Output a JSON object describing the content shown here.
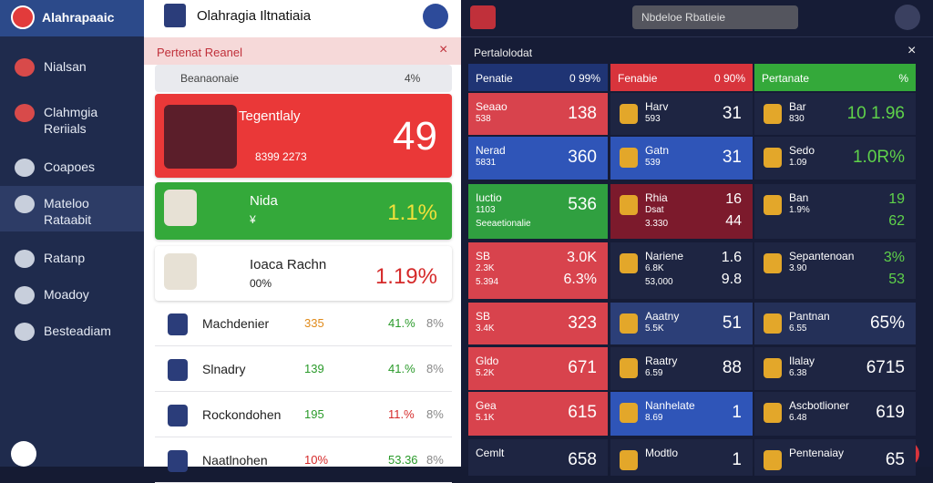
{
  "sidebar": {
    "brand": "Alahrapaaic",
    "items": [
      "Nialsan",
      "Clahmgia Reriials",
      "Coapoes",
      "Mateloo Rataabit",
      "Ratanp",
      "Moadoy",
      "Besteadiam"
    ]
  },
  "header": {
    "title": "Olahragia Iltnatiaia"
  },
  "panel": {
    "title": "Pertenat Reanel",
    "search": "Beanaonaie",
    "search_value": "4%",
    "cards": [
      {
        "title": "Tegentlaly",
        "sub": "8399 2273",
        "value": "49"
      },
      {
        "title": "Nida",
        "sub": "¥",
        "value": "1.1%"
      },
      {
        "title": "Ioaca Rachn",
        "sub": "00%",
        "value": "1.19%"
      }
    ],
    "rows": [
      [
        "Machdenier",
        "335",
        "41.%",
        "8%"
      ],
      [
        "Slnadry",
        "139",
        "41.%",
        "8%"
      ],
      [
        "Rockondohen",
        "195",
        "11.%",
        "8%"
      ],
      [
        "Naatlnohen",
        "10%",
        "53.36",
        "8%"
      ]
    ]
  },
  "right": {
    "search": "Nbdeloe Rbatieie",
    "title": "Pertalolodat",
    "columns": [
      {
        "header": "Penatie",
        "header_value": "0 99%",
        "cells": [
          {
            "lines": [
              "Seaao",
              "538"
            ],
            "values": [
              "138"
            ]
          },
          {
            "lines": [
              "Nerad",
              "5831"
            ],
            "values": [
              "360"
            ]
          },
          {
            "lines": [
              "Iuctio",
              "1103",
              "Seeaetionalie"
            ],
            "values": [
              "536"
            ]
          },
          {
            "lines": [
              "SB",
              "2.3K",
              "5.394"
            ],
            "values": [
              "3.0K",
              "6.3%"
            ]
          },
          {
            "lines": [
              "SB",
              "3.4K"
            ],
            "values": [
              "323"
            ]
          },
          {
            "lines": [
              "Gldo",
              "5.2K"
            ],
            "values": [
              "671"
            ]
          },
          {
            "lines": [
              "Gea",
              "5.1K"
            ],
            "values": [
              "615"
            ]
          },
          {
            "lines": [
              "Cemlt"
            ],
            "values": [
              "658"
            ]
          }
        ]
      },
      {
        "header": "Fenabie",
        "header_value": "0 90%",
        "cells": [
          {
            "lines": [
              "Harv",
              "593"
            ],
            "values": [
              "31"
            ]
          },
          {
            "lines": [
              "Gatn",
              "539"
            ],
            "values": [
              "31"
            ]
          },
          {
            "lines": [
              "Rhia",
              "Dsat",
              "3.330"
            ],
            "values": [
              "16",
              "44"
            ]
          },
          {
            "lines": [
              "Nariene",
              "6.8K",
              "53,000"
            ],
            "values": [
              "1.6",
              "9.8"
            ]
          },
          {
            "lines": [
              "Aaatny",
              "5.5K"
            ],
            "values": [
              "51"
            ]
          },
          {
            "lines": [
              "Raatry",
              "6.59"
            ],
            "values": [
              "88"
            ]
          },
          {
            "lines": [
              "Nanhelate",
              "8.69"
            ],
            "values": [
              "1"
            ]
          },
          {
            "lines": [
              "Modtlo"
            ],
            "values": [
              "1"
            ]
          }
        ]
      },
      {
        "header": "Pertanate",
        "header_value": "%",
        "cells": [
          {
            "lines": [
              "Bar",
              "830"
            ],
            "values": [
              "10 1.96"
            ]
          },
          {
            "lines": [
              "Sedo",
              "1.09"
            ],
            "values": [
              "1.0R%"
            ]
          },
          {
            "lines": [
              "Ban",
              "1.9%"
            ],
            "values": [
              "19",
              "62"
            ]
          },
          {
            "lines": [
              "Sepantenoan",
              "3.90"
            ],
            "values": [
              "3%",
              "53"
            ]
          },
          {
            "lines": [
              "Pantnan",
              "6.55"
            ],
            "values": [
              "65%"
            ]
          },
          {
            "lines": [
              "Ilalay",
              "6.38"
            ],
            "values": [
              "6715"
            ]
          },
          {
            "lines": [
              "Ascbotlioner",
              "6.48"
            ],
            "values": [
              "619"
            ]
          },
          {
            "lines": [
              "Pentenaiay"
            ],
            "values": [
              "65"
            ]
          }
        ]
      }
    ]
  }
}
